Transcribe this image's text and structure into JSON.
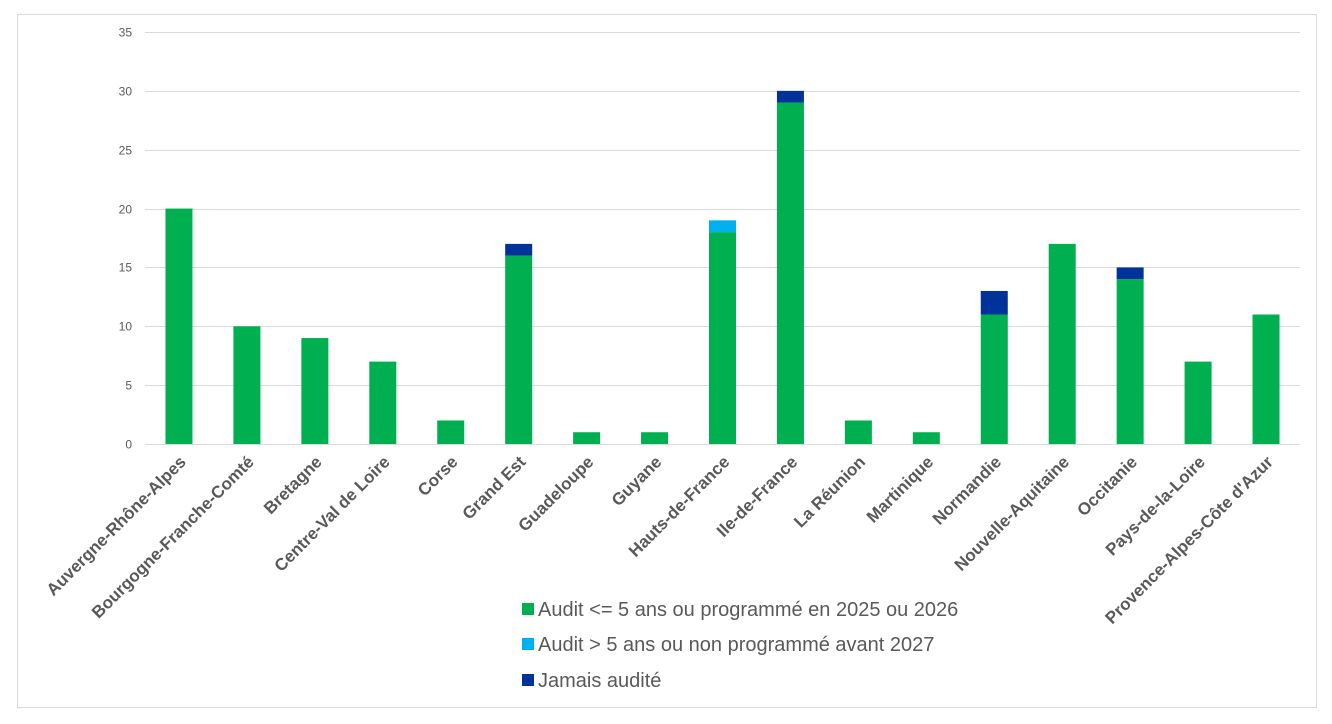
{
  "chart_data": {
    "type": "bar",
    "stacked": true,
    "categories": [
      "Auvergne-Rhône-Alpes",
      "Bourgogne-Franche-Comté",
      "Bretagne",
      "Centre-Val de Loire",
      "Corse",
      "Grand Est",
      "Guadeloupe",
      "Guyane",
      "Hauts-de-France",
      "Ile-de-France",
      "La Réunion",
      "Martinique",
      "Normandie",
      "Nouvelle-Aquitaine",
      "Occitanie",
      "Pays-de-la-Loire",
      "Provence-Alpes-Côte d'Azur"
    ],
    "series": [
      {
        "name": "Audit <= 5 ans ou programmé en 2025 ou 2026",
        "color": "#00b050",
        "values": [
          20,
          10,
          9,
          7,
          2,
          16,
          1,
          1,
          18,
          29,
          2,
          1,
          11,
          17,
          14,
          7,
          11
        ]
      },
      {
        "name": "Audit > 5 ans ou non programmé avant 2027",
        "color": "#00b0f0",
        "values": [
          0,
          0,
          0,
          0,
          0,
          0,
          0,
          0,
          1,
          0,
          0,
          0,
          0,
          0,
          0,
          0,
          0
        ]
      },
      {
        "name": "Jamais audité",
        "color": "#003399",
        "values": [
          0,
          0,
          0,
          0,
          0,
          1,
          0,
          0,
          0,
          1,
          0,
          0,
          2,
          0,
          1,
          0,
          0
        ]
      }
    ],
    "title": "",
    "xlabel": "",
    "ylabel": "",
    "ylim": [
      0,
      35
    ],
    "yticks": [
      0,
      5,
      10,
      15,
      20,
      25,
      30,
      35
    ],
    "grid": true,
    "legend_position": "bottom-center"
  }
}
